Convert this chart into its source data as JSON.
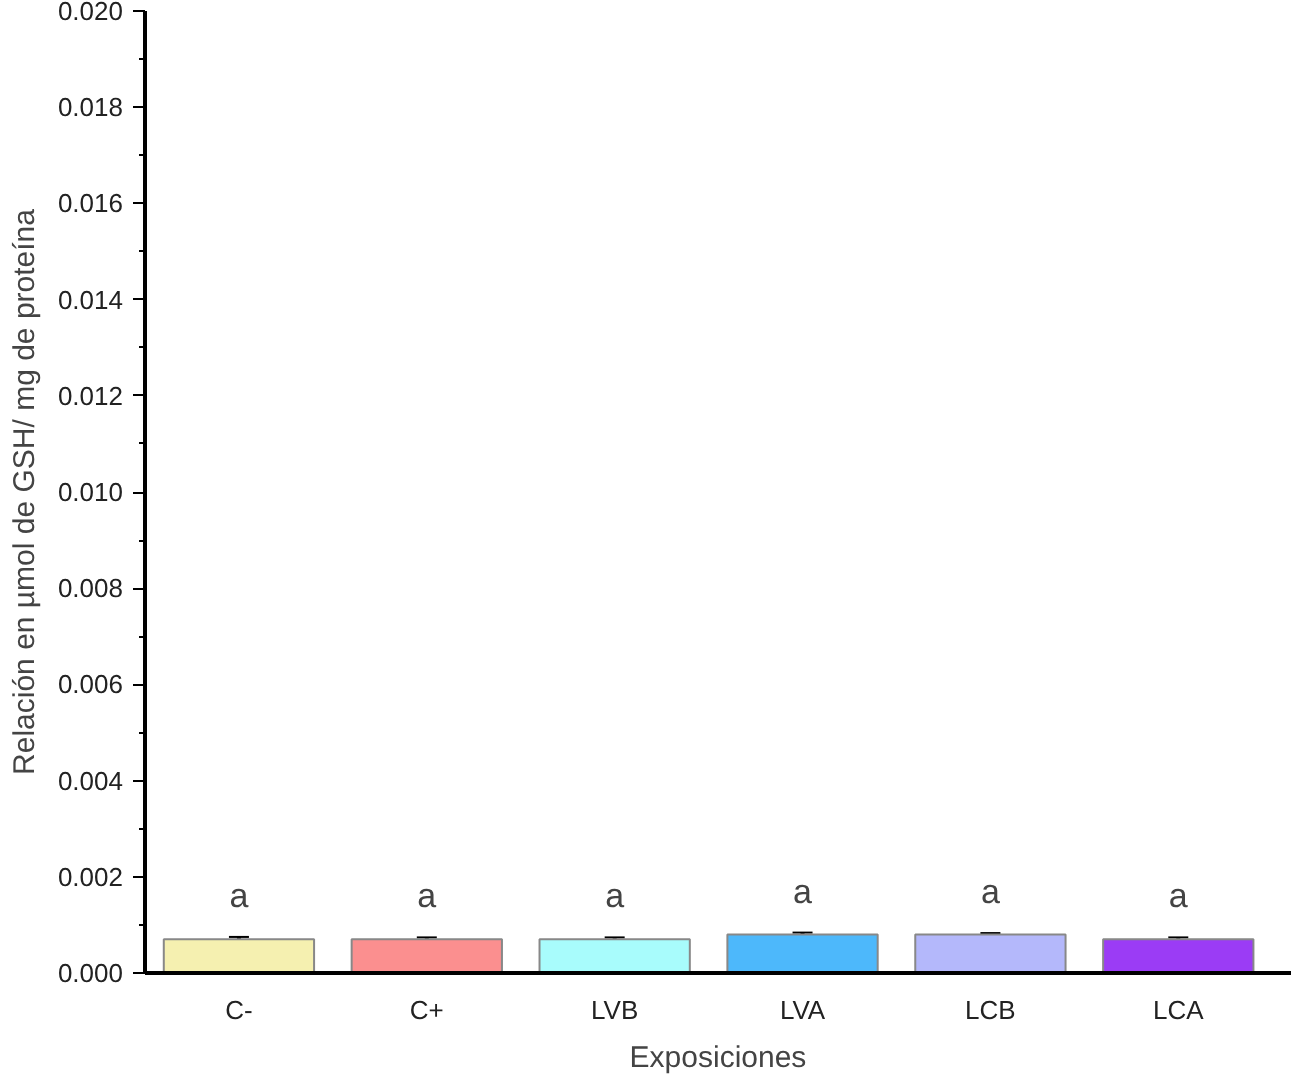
{
  "chart_data": {
    "type": "bar",
    "xlabel": "Exposiciones",
    "ylabel": "Relación en µmol de GSH/ mg de proteína",
    "categories": [
      "C-",
      "C+",
      "LVB",
      "LVA",
      "LCB",
      "LCA"
    ],
    "values": [
      0.0007,
      0.0007,
      0.0007,
      0.0008,
      0.0008,
      0.0007
    ],
    "errors": [
      5e-05,
      4e-05,
      4e-05,
      4e-05,
      3e-05,
      4e-05
    ],
    "colors": [
      "#f5f0b0",
      "#fb8f8f",
      "#a8fcfc",
      "#4db8fb",
      "#b4b8fb",
      "#9b3cf5"
    ],
    "ylim": [
      0,
      0.02
    ],
    "yticks": [
      {
        "value": 0,
        "label": "0.000"
      },
      {
        "value": 0.002,
        "label": "0.002"
      },
      {
        "value": 0.004,
        "label": "0.004"
      },
      {
        "value": 0.006,
        "label": "0.006"
      },
      {
        "value": 0.008,
        "label": "0.008"
      },
      {
        "value": 0.01,
        "label": "0.010"
      },
      {
        "value": 0.012,
        "label": "0.012"
      },
      {
        "value": 0.014,
        "label": "0.014"
      },
      {
        "value": 0.016,
        "label": "0.016"
      },
      {
        "value": 0.018,
        "label": "0.018"
      },
      {
        "value": 0.02,
        "label": "0.020"
      }
    ],
    "grid": false,
    "annotations": [
      "a",
      "a",
      "a",
      "a",
      "a",
      "a"
    ]
  }
}
